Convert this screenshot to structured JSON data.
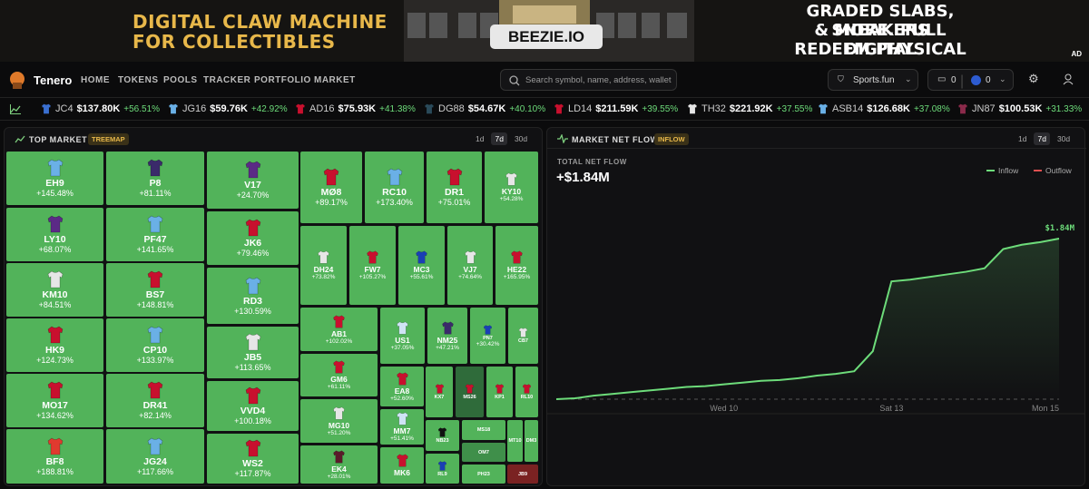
{
  "ad": {
    "left_line1": "DIGITAL CLAW MACHINE",
    "left_line2": "FOR COLLECTIBLES",
    "brand": "BEEZIE.IO",
    "right_line1": "GRADED SLABS, SNEAKERS",
    "right_line2": "& MORE. PULL DIGITAL",
    "right_line3": "REDEEM PHYSICAL",
    "tag": "AD"
  },
  "nav": {
    "logo": "Tenero",
    "links": [
      "HOME",
      "TOKENS",
      "POOLS",
      "TRACKER",
      "PORTFOLIO",
      "MARKET"
    ],
    "search_placeholder": "Search symbol, name, address, wallet",
    "network": "Sports.fun",
    "wallet_count": "0",
    "balance": "0"
  },
  "ticker": [
    {
      "symbol": "JC4",
      "price": "$137.80K",
      "change": "+56.51%",
      "jersey": "#3a6fd0"
    },
    {
      "symbol": "JG16",
      "price": "$59.76K",
      "change": "+42.92%",
      "jersey": "#6ab0e6"
    },
    {
      "symbol": "AD16",
      "price": "$75.93K",
      "change": "+41.38%",
      "jersey": "#c8102e"
    },
    {
      "symbol": "DG88",
      "price": "$54.67K",
      "change": "+40.10%",
      "jersey": "#2a4a5a"
    },
    {
      "symbol": "LD14",
      "price": "$211.59K",
      "change": "+39.55%",
      "jersey": "#c8102e"
    },
    {
      "symbol": "TH32",
      "price": "$221.92K",
      "change": "+37.55%",
      "jersey": "#e6e6e6"
    },
    {
      "symbol": "ASB14",
      "price": "$126.68K",
      "change": "+37.08%",
      "jersey": "#6ab0e6"
    },
    {
      "symbol": "JN87",
      "price": "$100.53K",
      "change": "+31.33%",
      "jersey": "#8a2a4a"
    }
  ],
  "top_market": {
    "title": "TOP MARKET",
    "badge": "TREEMAP",
    "timeframes": [
      "1d",
      "7d",
      "30d"
    ],
    "active": 1,
    "tile_color": "#52b35a",
    "tiles": [
      {
        "label": "EH9",
        "change": "+145.48%",
        "jersey": "#6ab0e6"
      },
      {
        "label": "LY10",
        "change": "+68.07%",
        "jersey": "#5b2a86"
      },
      {
        "label": "KM10",
        "change": "+84.51%",
        "jersey": "#e6e6e6"
      },
      {
        "label": "HK9",
        "change": "+124.73%",
        "jersey": "#c8102e"
      },
      {
        "label": "MO17",
        "change": "+134.62%",
        "jersey": "#c8102e"
      },
      {
        "label": "BF8",
        "change": "+188.81%",
        "jersey": "#e03a2f"
      },
      {
        "label": "P8",
        "change": "+81.11%",
        "jersey": "#3a2a6a"
      },
      {
        "label": "PF47",
        "change": "+141.65%",
        "jersey": "#6ab0e6"
      },
      {
        "label": "BS7",
        "change": "+148.81%",
        "jersey": "#c8102e"
      },
      {
        "label": "CP10",
        "change": "+133.97%",
        "jersey": "#6ab0e6"
      },
      {
        "label": "DR41",
        "change": "+82.14%",
        "jersey": "#c8102e"
      },
      {
        "label": "JG24",
        "change": "+117.66%",
        "jersey": "#6ab0e6"
      },
      {
        "label": "V17",
        "change": "+24.70%",
        "jersey": "#5b2a86"
      },
      {
        "label": "JK6",
        "change": "+79.46%",
        "jersey": "#c8102e"
      },
      {
        "label": "RD3",
        "change": "+130.59%",
        "jersey": "#6ab0e6"
      },
      {
        "label": "JB5",
        "change": "+113.65%",
        "jersey": "#e6e6e6"
      },
      {
        "label": "VVD4",
        "change": "+100.18%",
        "jersey": "#c8102e"
      },
      {
        "label": "WS2",
        "change": "+117.87%",
        "jersey": "#c8102e"
      },
      {
        "label": "MØ8",
        "change": "+89.17%",
        "jersey": "#c8102e"
      },
      {
        "label": "RC10",
        "change": "+173.40%",
        "jersey": "#6ab0e6"
      },
      {
        "label": "DR1",
        "change": "+75.01%",
        "jersey": "#c8102e"
      },
      {
        "label": "KY10",
        "change": "+54.28%",
        "jersey": "#e6e6e6"
      },
      {
        "label": "DH24",
        "change": "+73.82%",
        "jersey": "#e6e6e6"
      },
      {
        "label": "FW7",
        "change": "+105.27%",
        "jersey": "#c8102e"
      },
      {
        "label": "MC3",
        "change": "+55.61%",
        "jersey": "#1a3fb5"
      },
      {
        "label": "VJ7",
        "change": "+74.64%",
        "jersey": "#e6e6e6"
      },
      {
        "label": "HE22",
        "change": "+165.95%",
        "jersey": "#c8102e"
      },
      {
        "label": "AB1",
        "change": "+102.02%",
        "jersey": "#c8102e"
      },
      {
        "label": "GM6",
        "change": "+61.11%",
        "jersey": "#c8102e"
      },
      {
        "label": "MG10",
        "change": "+51.20%",
        "jersey": "#e6e6e6"
      },
      {
        "label": "EK4",
        "change": "+28.01%",
        "jersey": "#5a1a2a"
      },
      {
        "label": "US1",
        "change": "+37.05%",
        "jersey": "#cfe3f5"
      },
      {
        "label": "NM25",
        "change": "+47.21%",
        "jersey": "#3a2a6a"
      },
      {
        "label": "PN7",
        "change": "+30.42%",
        "jersey": "#1a3fb5"
      },
      {
        "label": "CB7",
        "jersey": "#e6e6e6"
      },
      {
        "label": "EA8",
        "change": "+52.60%",
        "jersey": "#c8102e"
      },
      {
        "label": "MM7",
        "change": "+51.41%",
        "jersey": "#cfe3f5"
      },
      {
        "label": "MK6",
        "jersey": "#c8102e"
      },
      {
        "label": "KX7",
        "jersey": "#c8102e"
      },
      {
        "label": "MS26",
        "jersey": "#c8102e",
        "color": "#2f6b3a"
      },
      {
        "label": "KP1",
        "jersey": "#c8102e"
      },
      {
        "label": "RL10",
        "jersey": "#c8102e"
      },
      {
        "label": "NB23",
        "jersey": "#111111"
      },
      {
        "label": "RL9",
        "jersey": "#1a3fb5"
      },
      {
        "label": "MS18"
      },
      {
        "label": "OM7",
        "color": "#3f8f4a"
      },
      {
        "label": "PH23"
      },
      {
        "label": "MT10"
      },
      {
        "label": "DM3"
      },
      {
        "label": "JB9",
        "color": "#7a2222"
      }
    ]
  },
  "net_flow": {
    "title": "MARKET NET FLOW",
    "badge": "INFLOW",
    "timeframes": [
      "1d",
      "7d",
      "30d"
    ],
    "active": 1,
    "total_label": "TOTAL NET FLOW",
    "total": "+$1.84M",
    "end_label": "$1.84M",
    "legend": [
      {
        "name": "Inflow",
        "color": "#6ddc7a"
      },
      {
        "name": "Outflow",
        "color": "#e05050"
      }
    ],
    "x_labels": [
      "Wed 10",
      "Sat 13",
      "Mon 15"
    ],
    "values": [
      0,
      0.01,
      0.04,
      0.06,
      0.08,
      0.1,
      0.12,
      0.14,
      0.15,
      0.17,
      0.19,
      0.21,
      0.22,
      0.24,
      0.27,
      0.29,
      0.32,
      0.55,
      1.35,
      1.37,
      1.4,
      1.43,
      1.46,
      1.5,
      1.72,
      1.77,
      1.8,
      1.84
    ]
  }
}
